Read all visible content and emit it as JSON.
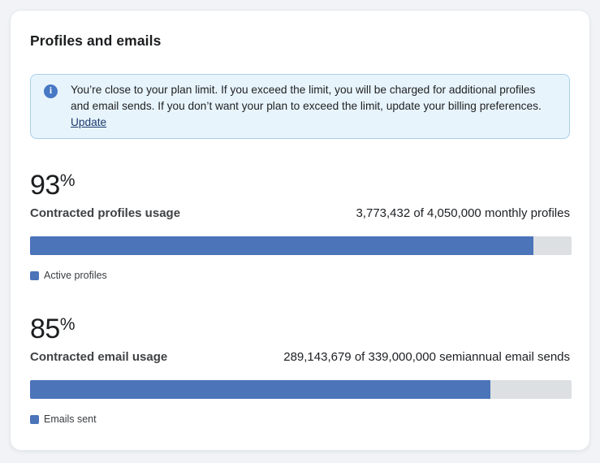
{
  "card": {
    "title": "Profiles and emails"
  },
  "alert": {
    "icon": "info-icon",
    "icon_glyph": "i",
    "text_before_link": "You’re close to your plan limit. If you exceed the limit, you will be charged for additional profiles and email sends. If you don’t want your plan to exceed the limit, update your billing preferences. ",
    "link_label": "Update",
    "background": "#e8f4fc",
    "border_color": "#a9cfeb",
    "icon_color": "#4779c4"
  },
  "sections": [
    {
      "percent_value": "93",
      "percent_symbol": "%",
      "label": "Contracted profiles usage",
      "usage_text": "3,773,432 of 4,050,000 monthly profiles",
      "used": "3,773,432",
      "limit": "4,050,000",
      "period": "monthly profiles",
      "progress_percent": 93,
      "legend_label": "Active profiles"
    },
    {
      "percent_value": "85",
      "percent_symbol": "%",
      "label": "Contracted email usage",
      "usage_text": "289,143,679 of 339,000,000 semiannual email sends",
      "used": "289,143,679",
      "limit": "339,000,000",
      "period": "semiannual email sends",
      "progress_percent": 85,
      "legend_label": "Emails sent"
    }
  ],
  "colors": {
    "bar_fill": "#4b74b9",
    "bar_track": "#dde0e3",
    "link": "#1d3a6d"
  }
}
